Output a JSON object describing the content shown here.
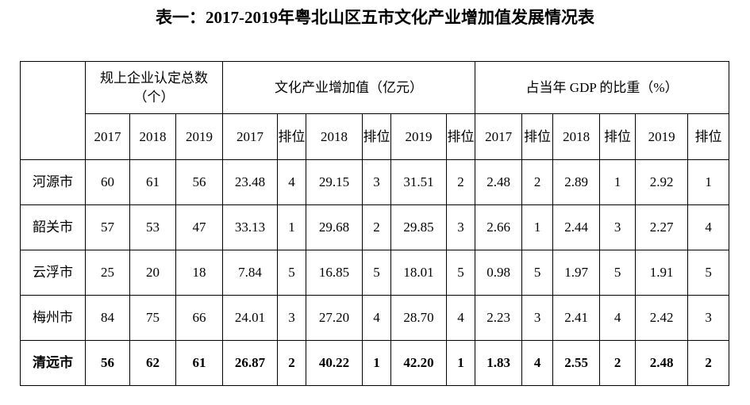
{
  "title": "表一：2017-2019年粤北山区五市文化产业增加值发展情况表",
  "table": {
    "groups": [
      "规上企业认定总数（个）",
      "文化产业增加值（亿元）",
      "占当年 GDP 的比重（%）"
    ],
    "columns": [
      "2017",
      "2018",
      "2019",
      "2017",
      "排位",
      "2018",
      "排位",
      "2019",
      "排位",
      "2017",
      "排位",
      "2018",
      "排位",
      "2019",
      "排位"
    ],
    "rows": [
      [
        "河源市",
        "60",
        "61",
        "56",
        "23.48",
        "4",
        "29.15",
        "3",
        "31.51",
        "2",
        "2.48",
        "2",
        "2.89",
        "1",
        "2.92",
        "1"
      ],
      [
        "韶关市",
        "57",
        "53",
        "47",
        "33.13",
        "1",
        "29.68",
        "2",
        "29.85",
        "3",
        "2.66",
        "1",
        "2.44",
        "3",
        "2.27",
        "4"
      ],
      [
        "云浮市",
        "25",
        "20",
        "18",
        "7.84",
        "5",
        "16.85",
        "5",
        "18.01",
        "5",
        "0.98",
        "5",
        "1.97",
        "5",
        "1.91",
        "5"
      ],
      [
        "梅州市",
        "84",
        "75",
        "66",
        "24.01",
        "3",
        "27.20",
        "4",
        "28.70",
        "4",
        "2.23",
        "3",
        "2.41",
        "4",
        "2.42",
        "3"
      ],
      [
        "清远市",
        "56",
        "62",
        "61",
        "26.87",
        "2",
        "40.22",
        "1",
        "42.20",
        "1",
        "1.83",
        "4",
        "2.55",
        "2",
        "2.48",
        "2"
      ]
    ]
  }
}
